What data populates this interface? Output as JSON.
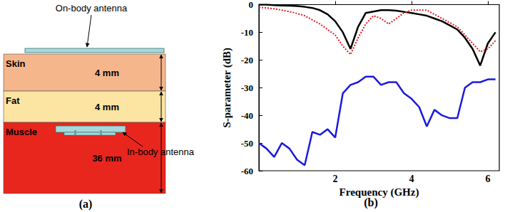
{
  "panels": [
    "(a)",
    "(b)"
  ],
  "diagram": {
    "on_body_antenna": "On-body antenna",
    "in_body_antenna": "In-body antenna",
    "layers": [
      {
        "name": "Skin",
        "thickness": "4 mm",
        "color": "#f6b68c"
      },
      {
        "name": "Fat",
        "thickness": "4 mm",
        "color": "#fce5a2"
      },
      {
        "name": "Muscle",
        "thickness": "36 mm",
        "color": "#e8261d"
      }
    ]
  },
  "chart_data": {
    "type": "line",
    "x_label": "Frequency (GHz)",
    "y_label": "S-parameter (dB)",
    "x": [
      0,
      0.2,
      0.4,
      0.6,
      0.8,
      1.0,
      1.2,
      1.4,
      1.6,
      1.8,
      2.0,
      2.2,
      2.4,
      2.6,
      2.8,
      3.0,
      3.2,
      3.4,
      3.6,
      3.8,
      4.0,
      4.2,
      4.4,
      4.6,
      4.8,
      5.0,
      5.2,
      5.4,
      5.6,
      5.8,
      6.0,
      6.2
    ],
    "series": [
      {
        "color": "#000000",
        "line_style": "solid",
        "values": [
          0,
          0,
          -0.2,
          -0.3,
          -0.4,
          -0.5,
          -0.8,
          -1.2,
          -2,
          -3.5,
          -6,
          -10,
          -16,
          -8,
          -3,
          -2.5,
          -2,
          -2,
          -2.2,
          -2.6,
          -3,
          -3.5,
          -4,
          -5,
          -6,
          -7.5,
          -9,
          -12,
          -16,
          -22,
          -14,
          -10
        ]
      },
      {
        "color": "#e8191f",
        "line_style": "dotted",
        "values": [
          -1,
          -1.2,
          -1.5,
          -2,
          -2.5,
          -3.2,
          -4,
          -5.5,
          -7,
          -9,
          -11,
          -15,
          -18,
          -12,
          -7,
          -4,
          -5,
          -7,
          -5,
          -3,
          -2,
          -2,
          -2,
          -3.5,
          -5,
          -6.5,
          -8,
          -11,
          -14,
          -17,
          -16,
          -13
        ]
      },
      {
        "color": "#1a1adc",
        "line_style": "solid",
        "values": [
          -50,
          -52,
          -55,
          -50,
          -52,
          -56,
          -58,
          -46,
          -47,
          -45,
          -48,
          -32,
          -29,
          -28,
          -26,
          -26,
          -29,
          -28,
          -28,
          -32,
          -34,
          -37,
          -44,
          -38,
          -40,
          -41,
          -41,
          -30,
          -28,
          -28,
          -27,
          -27
        ]
      }
    ],
    "xlim": [
      0,
      6.3
    ],
    "xticks": [
      2,
      4,
      6
    ],
    "ylim": [
      -60,
      0
    ],
    "yticks": [
      -60,
      -50,
      -40,
      -30,
      -20,
      -10,
      0
    ],
    "grid": false
  }
}
